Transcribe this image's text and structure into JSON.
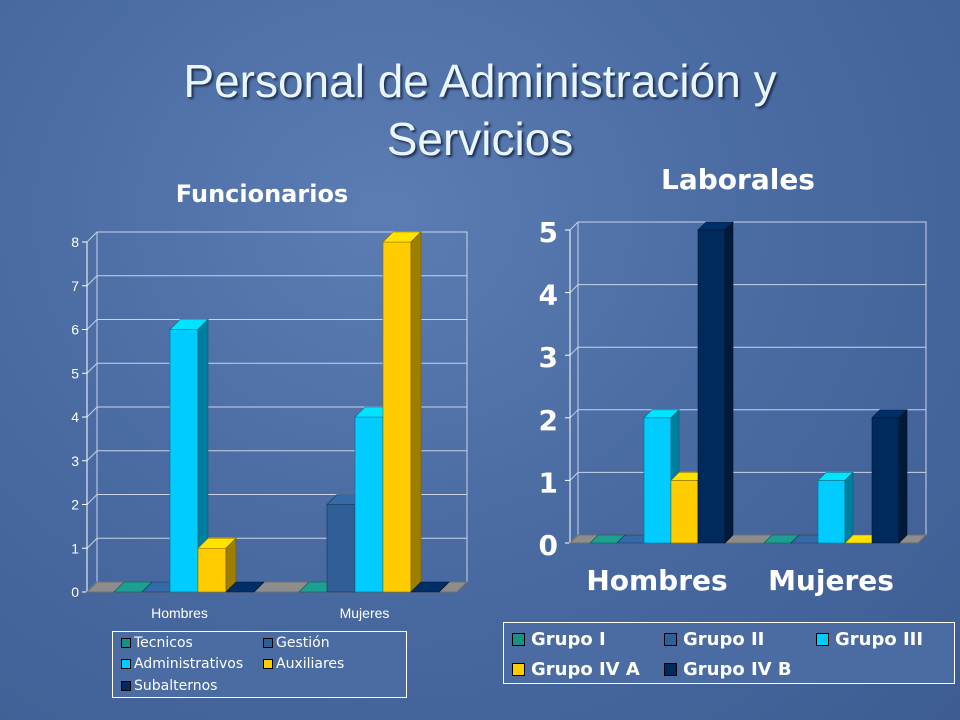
{
  "slide": {
    "title_line1": "Personal de Administración y",
    "title_line2": "Servicios"
  },
  "chart_data": [
    {
      "type": "bar",
      "title": "Funcionarios",
      "categories": [
        "Hombres",
        "Mujeres"
      ],
      "yticks": [
        "0",
        "1",
        "2",
        "3",
        "4",
        "5",
        "6",
        "7",
        "8"
      ],
      "ylim": [
        0,
        8
      ],
      "grid": true,
      "legend_position": "bottom",
      "series": [
        {
          "name": "Tecnicos",
          "color": "#1a8f83",
          "values": [
            0,
            0
          ]
        },
        {
          "name": "Gestión",
          "color": "#2f5f96",
          "values": [
            0,
            2
          ]
        },
        {
          "name": "Administrativos",
          "color": "#00ccff",
          "values": [
            6,
            4
          ]
        },
        {
          "name": "Auxiliares",
          "color": "#ffcc00",
          "values": [
            1,
            8
          ]
        },
        {
          "name": "Subalternos",
          "color": "#002a5c",
          "values": [
            0,
            0
          ]
        }
      ]
    },
    {
      "type": "bar",
      "title": "Laborales",
      "categories": [
        "Hombres",
        "Mujeres"
      ],
      "yticks": [
        "0",
        "1",
        "2",
        "3",
        "4",
        "5"
      ],
      "ylim": [
        0,
        5
      ],
      "grid": true,
      "legend_position": "bottom",
      "series": [
        {
          "name": "Grupo I",
          "color": "#1a8f83",
          "values": [
            0,
            0
          ]
        },
        {
          "name": "Grupo II",
          "color": "#2f5f96",
          "values": [
            0,
            0
          ]
        },
        {
          "name": "Grupo III",
          "color": "#00ccff",
          "values": [
            2,
            1
          ]
        },
        {
          "name": "Grupo IV A",
          "color": "#ffcc00",
          "values": [
            1,
            0
          ]
        },
        {
          "name": "Grupo IV B",
          "color": "#002a5c",
          "values": [
            5,
            2
          ]
        }
      ]
    }
  ]
}
